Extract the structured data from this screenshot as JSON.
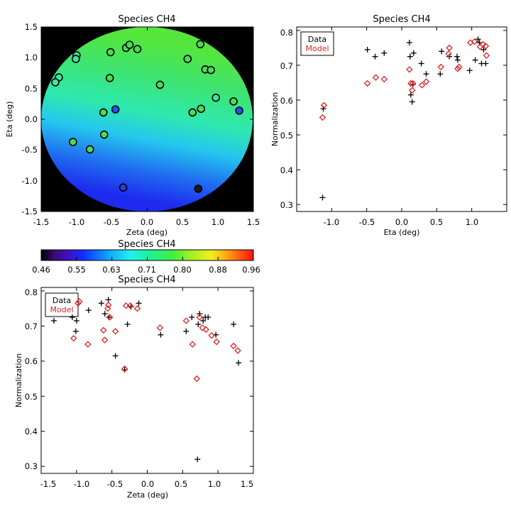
{
  "chart_data": [
    {
      "type": "map",
      "title": "Species CH4",
      "xlabel": "Zeta (deg)",
      "ylabel": "Eta (deg)",
      "xlim": [
        -1.5,
        1.5
      ],
      "ylim": [
        -1.5,
        1.5
      ],
      "xticks": [
        "-1.5",
        "-1.0",
        "-0.5",
        "0.0",
        "0.5",
        "1.0",
        "1.5"
      ],
      "yticks": [
        "-1.5",
        "-1.0",
        "-0.5",
        "0.0",
        "0.5",
        "1.0",
        "1.5"
      ],
      "background": "#000000",
      "points": [
        {
          "zeta": -1.25,
          "eta": 0.68,
          "color": "#3ce69e"
        },
        {
          "zeta": -1.3,
          "eta": 0.6,
          "color": "#3ce69e"
        },
        {
          "zeta": -1.0,
          "eta": 1.04,
          "color": "#3ce69e"
        },
        {
          "zeta": -1.01,
          "eta": 0.98,
          "color": "#3ce69e"
        },
        {
          "zeta": -0.52,
          "eta": 1.09,
          "color": "#4bdc55"
        },
        {
          "zeta": -0.3,
          "eta": 1.16,
          "color": "#4bdc55"
        },
        {
          "zeta": -0.25,
          "eta": 1.21,
          "color": "#4bdc55"
        },
        {
          "zeta": -0.14,
          "eta": 1.14,
          "color": "#4bdc55"
        },
        {
          "zeta": -0.53,
          "eta": 0.67,
          "color": "#4bdc55"
        },
        {
          "zeta": 0.57,
          "eta": 0.98,
          "color": "#4bdc55"
        },
        {
          "zeta": 0.75,
          "eta": 1.22,
          "color": "#4bdc55"
        },
        {
          "zeta": 0.82,
          "eta": 0.81,
          "color": "#4bdc55"
        },
        {
          "zeta": 0.9,
          "eta": 0.8,
          "color": "#4bdc55"
        },
        {
          "zeta": 0.18,
          "eta": 0.56,
          "color": "#4bdc55"
        },
        {
          "zeta": 0.97,
          "eta": 0.35,
          "color": "#3ce69e"
        },
        {
          "zeta": 1.22,
          "eta": 0.29,
          "color": "#4bdc55"
        },
        {
          "zeta": 1.3,
          "eta": 0.14,
          "color": "#2050ff"
        },
        {
          "zeta": -0.62,
          "eta": 0.11,
          "color": "#4bdc55"
        },
        {
          "zeta": -0.45,
          "eta": 0.16,
          "color": "#2050ff"
        },
        {
          "zeta": 0.64,
          "eta": 0.11,
          "color": "#4bdc55"
        },
        {
          "zeta": 0.76,
          "eta": 0.17,
          "color": "#4bdc55"
        },
        {
          "zeta": -0.61,
          "eta": -0.25,
          "color": "#4bdc55"
        },
        {
          "zeta": -1.05,
          "eta": -0.37,
          "color": "#4bdc55"
        },
        {
          "zeta": -0.81,
          "eta": -0.49,
          "color": "#4bdc55"
        },
        {
          "zeta": -0.34,
          "eta": -1.11,
          "color": "#2a40d0"
        },
        {
          "zeta": 0.72,
          "eta": -1.13,
          "color": "#1a1a1a"
        }
      ]
    },
    {
      "type": "scatter",
      "title": "Species CH4",
      "xlabel": "Eta (deg)",
      "ylabel": "Normalization",
      "xlim": [
        -1.5,
        1.5
      ],
      "ylim": [
        0.28,
        0.81
      ],
      "xticks": [
        "-1.0",
        "-0.5",
        "0.0",
        "0.5",
        "1.0"
      ],
      "yticks": [
        "0.3",
        "0.4",
        "0.5",
        "0.6",
        "0.7",
        "0.8"
      ],
      "legend": {
        "position": "top-left",
        "entries": [
          "Data",
          "Model"
        ]
      },
      "series": [
        {
          "name": "Data",
          "marker": "plus",
          "color": "#000000",
          "x": [
            -1.13,
            -1.12,
            -0.49,
            -0.38,
            -0.25,
            0.11,
            0.12,
            0.13,
            0.15,
            0.16,
            0.17,
            0.28,
            0.35,
            0.55,
            0.57,
            0.68,
            0.79,
            0.8,
            0.97,
            1.05,
            1.09,
            1.11,
            1.14,
            1.17,
            1.2
          ],
          "y": [
            0.32,
            0.575,
            0.745,
            0.725,
            0.735,
            0.765,
            0.725,
            0.615,
            0.595,
            0.645,
            0.735,
            0.705,
            0.675,
            0.675,
            0.74,
            0.725,
            0.725,
            0.715,
            0.685,
            0.715,
            0.775,
            0.765,
            0.705,
            0.745,
            0.705
          ]
        },
        {
          "name": "Model",
          "marker": "diamond",
          "color": "#dd2222",
          "x": [
            -1.13,
            -1.11,
            -0.49,
            -0.37,
            -0.25,
            0.11,
            0.13,
            0.15,
            0.16,
            0.29,
            0.35,
            0.56,
            0.67,
            0.68,
            0.8,
            0.82,
            0.98,
            1.04,
            1.12,
            1.16,
            1.2,
            1.21
          ],
          "y": [
            0.55,
            0.585,
            0.648,
            0.665,
            0.66,
            0.688,
            0.648,
            0.628,
            0.648,
            0.643,
            0.653,
            0.695,
            0.733,
            0.75,
            0.69,
            0.695,
            0.765,
            0.768,
            0.753,
            0.76,
            0.755,
            0.728
          ]
        }
      ]
    },
    {
      "type": "colorbar",
      "title": "Species CH4",
      "tick_labels": [
        "0.46",
        "0.55",
        "0.63",
        "0.71",
        "0.80",
        "0.88",
        "0.96"
      ],
      "range": [
        0.46,
        0.96
      ]
    },
    {
      "type": "scatter",
      "title": "Species CH4",
      "xlabel": "Zeta (deg)",
      "ylabel": "Normalization",
      "xlim": [
        -1.5,
        1.5
      ],
      "ylim": [
        0.28,
        0.81
      ],
      "xticks": [
        "-1.5",
        "-1.0",
        "-0.5",
        "0.0",
        "0.5",
        "1.0",
        "1.5"
      ],
      "yticks": [
        "0.3",
        "0.4",
        "0.5",
        "0.6",
        "0.7",
        "0.8"
      ],
      "legend": {
        "position": "top-left",
        "entries": [
          "Data",
          "Model"
        ]
      },
      "series": [
        {
          "name": "Data",
          "marker": "plus",
          "color": "#000000",
          "x": [
            -1.32,
            -1.06,
            -1.01,
            -1.0,
            -0.83,
            -0.65,
            -0.6,
            -0.55,
            -0.54,
            -0.45,
            -0.32,
            -0.28,
            -0.23,
            -0.12,
            0.19,
            0.55,
            0.63,
            0.71,
            0.72,
            0.74,
            0.79,
            0.82,
            0.86,
            0.97,
            1.22,
            1.29
          ],
          "y": [
            0.715,
            0.725,
            0.685,
            0.715,
            0.745,
            0.765,
            0.735,
            0.775,
            0.725,
            0.615,
            0.575,
            0.705,
            0.755,
            0.765,
            0.675,
            0.685,
            0.725,
            0.32,
            0.705,
            0.735,
            0.715,
            0.725,
            0.725,
            0.675,
            0.705,
            0.595
          ]
        },
        {
          "name": "Model",
          "marker": "diamond",
          "color": "#dd2222",
          "x": [
            -1.04,
            -0.98,
            -0.96,
            -0.84,
            -0.62,
            -0.6,
            -0.56,
            -0.55,
            -0.53,
            -0.45,
            -0.32,
            -0.3,
            -0.24,
            -0.14,
            0.18,
            0.55,
            0.64,
            0.7,
            0.74,
            0.78,
            0.83,
            0.91,
            0.98,
            1.22,
            1.28
          ],
          "y": [
            0.665,
            0.765,
            0.77,
            0.648,
            0.688,
            0.66,
            0.75,
            0.76,
            0.725,
            0.685,
            0.578,
            0.758,
            0.758,
            0.75,
            0.695,
            0.715,
            0.648,
            0.55,
            0.725,
            0.695,
            0.69,
            0.673,
            0.655,
            0.643,
            0.63
          ]
        }
      ]
    }
  ]
}
